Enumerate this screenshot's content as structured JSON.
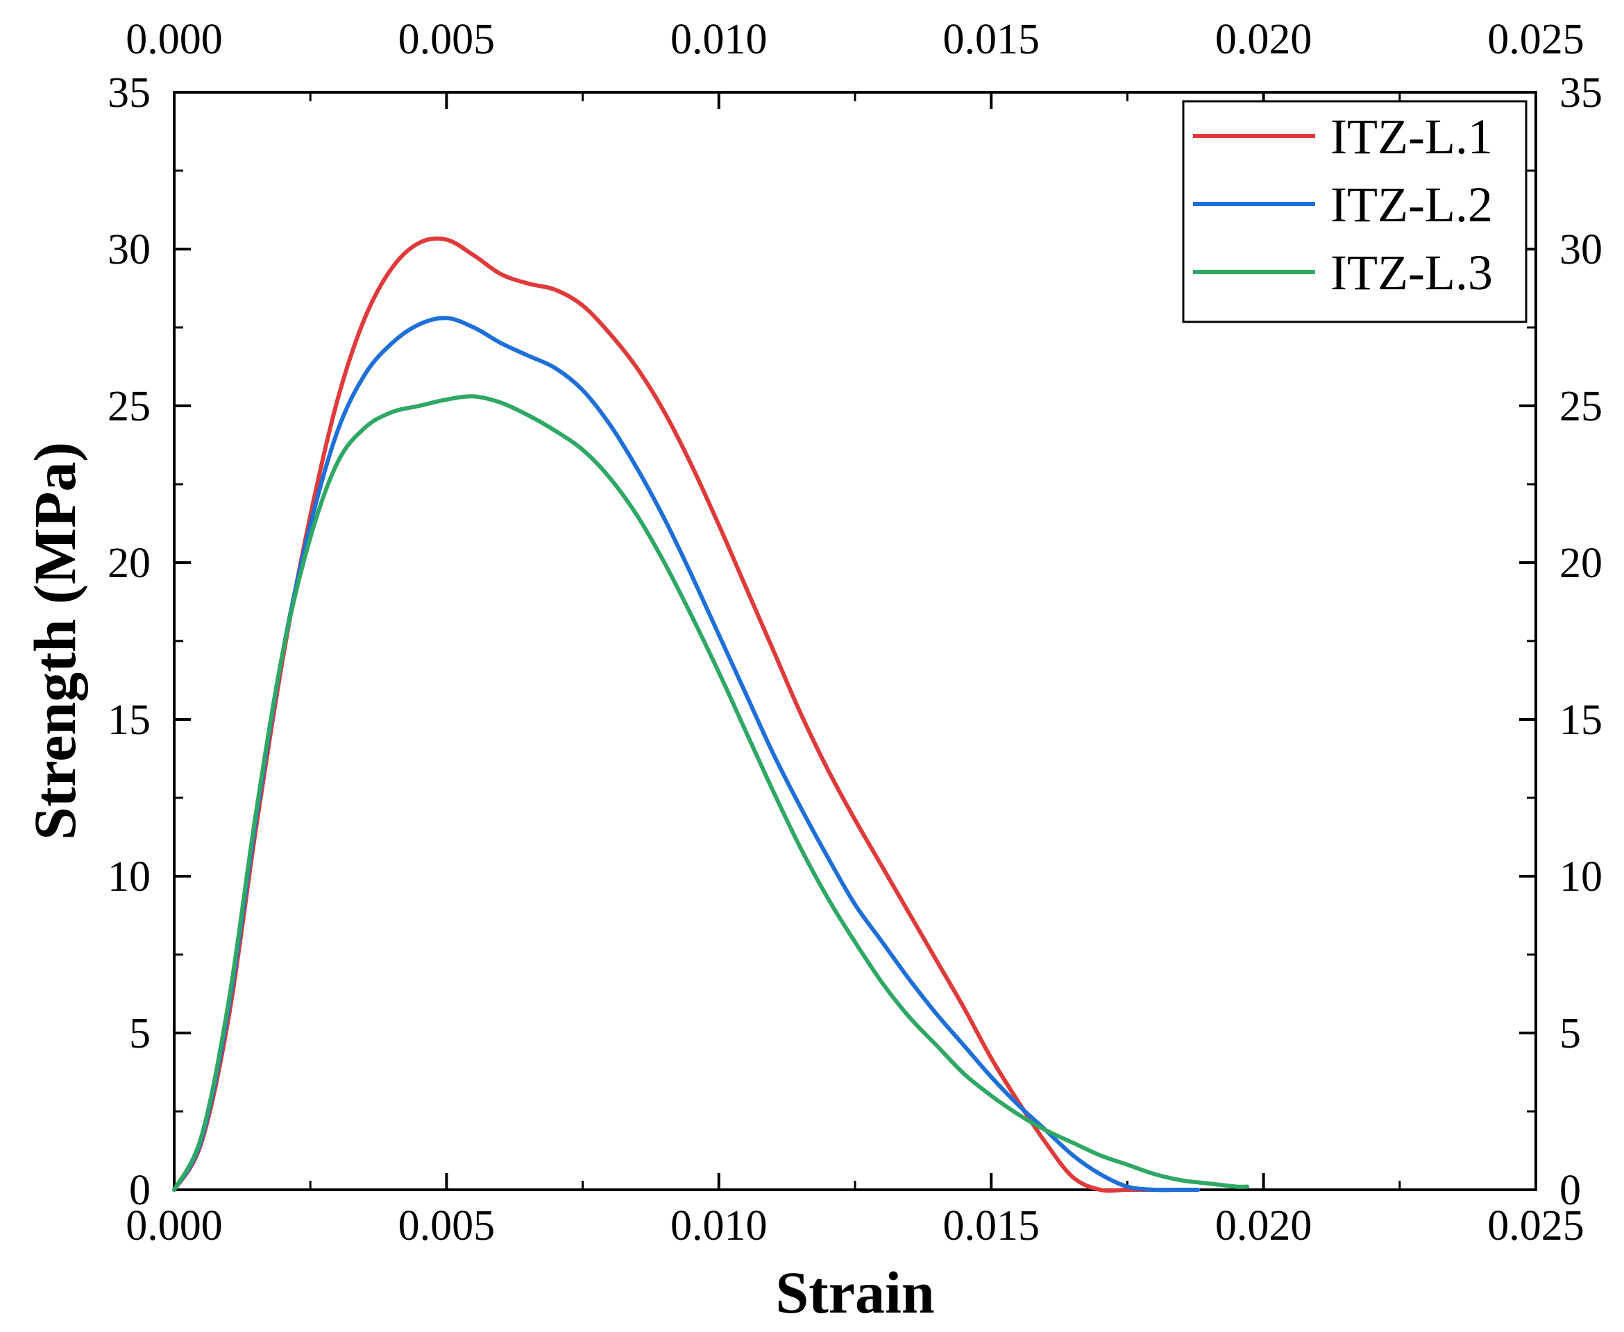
{
  "chart_data": {
    "type": "line",
    "title": "",
    "xlabel": "Strain",
    "ylabel": "Strength (MPa)",
    "xlim": [
      0.0,
      0.025
    ],
    "ylim": [
      0,
      35
    ],
    "grid": false,
    "legend_position": "top-right",
    "x_ticks": [
      "0.000",
      "0.005",
      "0.010",
      "0.015",
      "0.020",
      "0.025"
    ],
    "x_tick_values": [
      0.0,
      0.005,
      0.01,
      0.015,
      0.02,
      0.025
    ],
    "y_ticks": [
      "0",
      "5",
      "10",
      "15",
      "20",
      "25",
      "30",
      "35"
    ],
    "y_tick_values": [
      0,
      5,
      10,
      15,
      20,
      25,
      30,
      35
    ],
    "series": [
      {
        "name": "ITZ-L.1",
        "color": "#e03a3a",
        "x": [
          0.0,
          0.0005,
          0.001,
          0.0015,
          0.002,
          0.0025,
          0.003,
          0.0035,
          0.004,
          0.0045,
          0.005,
          0.0055,
          0.006,
          0.0065,
          0.007,
          0.0075,
          0.008,
          0.0085,
          0.009,
          0.0095,
          0.01,
          0.0105,
          0.011,
          0.0115,
          0.012,
          0.0125,
          0.013,
          0.0135,
          0.014,
          0.0145,
          0.015,
          0.0155,
          0.016,
          0.0165,
          0.017,
          0.0175,
          0.018,
          0.0185,
          0.0187
        ],
        "y": [
          0.0,
          1.5,
          5.5,
          11.5,
          17.0,
          21.5,
          25.2,
          27.8,
          29.4,
          30.2,
          30.3,
          29.8,
          29.2,
          28.9,
          28.7,
          28.2,
          27.3,
          26.2,
          24.8,
          23.1,
          21.2,
          19.2,
          17.2,
          15.2,
          13.4,
          11.8,
          10.3,
          8.8,
          7.3,
          5.8,
          4.2,
          2.8,
          1.5,
          0.4,
          0.0,
          0.0,
          0.0,
          0.0,
          0.0
        ]
      },
      {
        "name": "ITZ-L.2",
        "color": "#1f6fd8",
        "x": [
          0.0,
          0.0005,
          0.001,
          0.0015,
          0.002,
          0.0025,
          0.003,
          0.0035,
          0.004,
          0.0045,
          0.005,
          0.0055,
          0.006,
          0.0065,
          0.007,
          0.0075,
          0.008,
          0.0085,
          0.009,
          0.0095,
          0.01,
          0.0105,
          0.011,
          0.0115,
          0.012,
          0.0125,
          0.013,
          0.0135,
          0.014,
          0.0145,
          0.015,
          0.0155,
          0.016,
          0.0165,
          0.017,
          0.0175,
          0.018,
          0.0185,
          0.0188
        ],
        "y": [
          0.0,
          1.6,
          5.8,
          11.8,
          17.2,
          21.2,
          24.2,
          26.0,
          27.0,
          27.6,
          27.8,
          27.5,
          27.0,
          26.6,
          26.2,
          25.5,
          24.4,
          23.0,
          21.4,
          19.6,
          17.7,
          15.8,
          13.9,
          12.2,
          10.6,
          9.1,
          7.9,
          6.7,
          5.6,
          4.6,
          3.6,
          2.7,
          1.9,
          1.1,
          0.5,
          0.1,
          0.0,
          0.0,
          0.0
        ]
      },
      {
        "name": "ITZ-L.3",
        "color": "#2fa865",
        "x": [
          0.0,
          0.0005,
          0.001,
          0.0015,
          0.002,
          0.0025,
          0.003,
          0.0035,
          0.004,
          0.0045,
          0.005,
          0.0055,
          0.006,
          0.0065,
          0.007,
          0.0075,
          0.008,
          0.0085,
          0.009,
          0.0095,
          0.01,
          0.0105,
          0.011,
          0.0115,
          0.012,
          0.0125,
          0.013,
          0.0135,
          0.014,
          0.0145,
          0.015,
          0.0155,
          0.016,
          0.0165,
          0.017,
          0.0175,
          0.018,
          0.0185,
          0.019,
          0.0195,
          0.0197
        ],
        "y": [
          0.0,
          1.7,
          6.0,
          12.0,
          17.2,
          20.8,
          23.2,
          24.3,
          24.8,
          25.0,
          25.2,
          25.3,
          25.1,
          24.7,
          24.2,
          23.6,
          22.7,
          21.5,
          20.0,
          18.3,
          16.5,
          14.6,
          12.7,
          10.9,
          9.3,
          7.9,
          6.6,
          5.5,
          4.6,
          3.7,
          3.0,
          2.4,
          1.9,
          1.5,
          1.1,
          0.8,
          0.5,
          0.3,
          0.2,
          0.1,
          0.1
        ]
      }
    ]
  }
}
